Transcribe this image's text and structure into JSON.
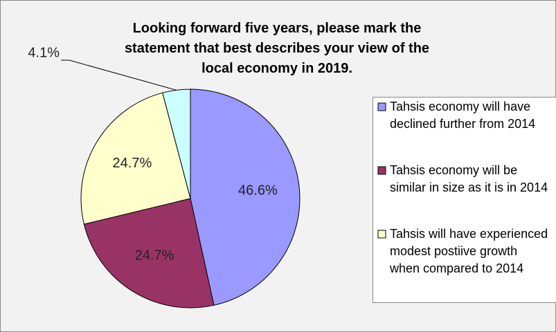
{
  "chart_data": {
    "type": "pie",
    "title": "Looking forward five years, please mark the statement that best describes your view of the local economy in 2019.",
    "categories": [
      "Tahsis economy will have declined further from 2014",
      "Tahsis economy will be similar in size as it is in 2014",
      "Tahsis will have experienced modest postiive growth when compared to 2014",
      null
    ],
    "values": [
      46.6,
      24.7,
      24.7,
      4.1
    ],
    "value_labels": [
      "46.6%",
      "24.7%",
      "24.7%",
      "4.1%"
    ],
    "colors": [
      "#9999ff",
      "#993366",
      "#ffffcc",
      "#ccffff"
    ],
    "legend": "right"
  }
}
